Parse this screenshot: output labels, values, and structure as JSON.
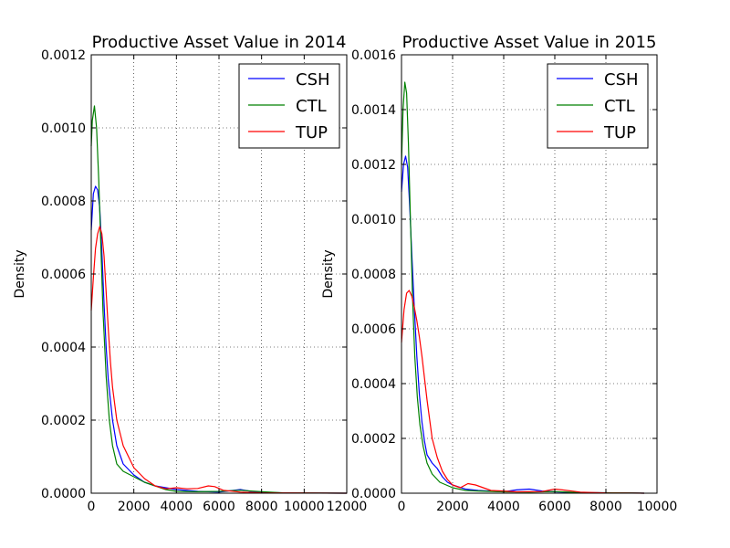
{
  "chart_data": [
    {
      "type": "line",
      "title": "Productive Asset Value in 2014",
      "xlabel": "",
      "ylabel": "Density",
      "xlim": [
        0,
        12000
      ],
      "ylim": [
        0,
        0.0012
      ],
      "xticks": [
        0,
        2000,
        4000,
        6000,
        8000,
        10000,
        12000
      ],
      "xtick_labels": [
        "0",
        "2000",
        "4000",
        "6000",
        "8000",
        "10000",
        "12000"
      ],
      "yticks": [
        0,
        0.0002,
        0.0004,
        0.0006,
        0.0008,
        0.001,
        0.0012
      ],
      "ytick_labels": [
        "0.0000",
        "0.0002",
        "0.0004",
        "0.0006",
        "0.0008",
        "0.0010",
        "0.0012"
      ],
      "grid": true,
      "legend": "top-right",
      "series": [
        {
          "name": "CSH",
          "color": "#0000ff",
          "points": [
            [
              0,
              0.00072
            ],
            [
              100,
              0.00082
            ],
            [
              200,
              0.00084
            ],
            [
              300,
              0.00083
            ],
            [
              400,
              0.00078
            ],
            [
              500,
              0.00066
            ],
            [
              600,
              0.00052
            ],
            [
              700,
              0.0004
            ],
            [
              800,
              0.00031
            ],
            [
              1000,
              0.0002
            ],
            [
              1200,
              0.00013
            ],
            [
              1500,
              8e-05
            ],
            [
              2000,
              5e-05
            ],
            [
              2500,
              3e-05
            ],
            [
              3000,
              2e-05
            ],
            [
              3500,
              1.5e-05
            ],
            [
              4000,
              1e-05
            ],
            [
              5000,
              5e-06
            ],
            [
              6000,
              3e-06
            ],
            [
              7000,
              1e-05
            ],
            [
              7500,
              5e-06
            ],
            [
              8000,
              2e-06
            ],
            [
              9000,
              1e-06
            ],
            [
              12000,
              0
            ]
          ]
        },
        {
          "name": "CTL",
          "color": "#008000",
          "points": [
            [
              0,
              0.00095
            ],
            [
              50,
              0.00102
            ],
            [
              150,
              0.00106
            ],
            [
              250,
              0.001
            ],
            [
              350,
              0.00086
            ],
            [
              450,
              0.00068
            ],
            [
              550,
              0.0005
            ],
            [
              700,
              0.00032
            ],
            [
              850,
              0.0002
            ],
            [
              1000,
              0.00013
            ],
            [
              1200,
              8e-05
            ],
            [
              1500,
              6e-05
            ],
            [
              2000,
              4.5e-05
            ],
            [
              2500,
              3e-05
            ],
            [
              3000,
              2e-05
            ],
            [
              3500,
              1e-05
            ],
            [
              4000,
              5e-06
            ],
            [
              5000,
              4e-06
            ],
            [
              6000,
              5e-06
            ],
            [
              7000,
              8e-06
            ],
            [
              8000,
              4e-06
            ],
            [
              9000,
              1e-06
            ],
            [
              12000,
              0
            ]
          ]
        },
        {
          "name": "TUP",
          "color": "#ff0000",
          "points": [
            [
              0,
              0.0005
            ],
            [
              100,
              0.00059
            ],
            [
              200,
              0.00067
            ],
            [
              300,
              0.00071
            ],
            [
              400,
              0.00073
            ],
            [
              500,
              0.00071
            ],
            [
              600,
              0.00065
            ],
            [
              700,
              0.00055
            ],
            [
              800,
              0.00045
            ],
            [
              900,
              0.00036
            ],
            [
              1000,
              0.00029
            ],
            [
              1200,
              0.0002
            ],
            [
              1500,
              0.00013
            ],
            [
              2000,
              7e-05
            ],
            [
              2500,
              4e-05
            ],
            [
              3000,
              2e-05
            ],
            [
              3500,
              1.2e-05
            ],
            [
              4000,
              1.5e-05
            ],
            [
              4500,
              1.2e-05
            ],
            [
              5000,
              1.3e-05
            ],
            [
              5500,
              2e-05
            ],
            [
              5800,
              1.8e-05
            ],
            [
              6200,
              8e-06
            ],
            [
              7000,
              3e-06
            ],
            [
              8000,
              1e-06
            ],
            [
              12000,
              0
            ]
          ]
        }
      ]
    },
    {
      "type": "line",
      "title": "Productive Asset Value in 2015",
      "xlabel": "",
      "ylabel": "Density",
      "xlim": [
        0,
        10000
      ],
      "ylim": [
        0,
        0.0016
      ],
      "xticks": [
        0,
        2000,
        4000,
        6000,
        8000,
        10000
      ],
      "xtick_labels": [
        "0",
        "2000",
        "4000",
        "6000",
        "8000",
        "10000"
      ],
      "yticks": [
        0,
        0.0002,
        0.0004,
        0.0006,
        0.0008,
        0.001,
        0.0012,
        0.0014,
        0.0016
      ],
      "ytick_labels": [
        "0.0000",
        "0.0002",
        "0.0004",
        "0.0006",
        "0.0008",
        "0.0010",
        "0.0012",
        "0.0014",
        "0.0016"
      ],
      "grid": true,
      "legend": "top-right",
      "series": [
        {
          "name": "CSH",
          "color": "#0000ff",
          "points": [
            [
              0,
              0.0011
            ],
            [
              80,
              0.0012
            ],
            [
              160,
              0.00123
            ],
            [
              240,
              0.00119
            ],
            [
              320,
              0.00105
            ],
            [
              400,
              0.00088
            ],
            [
              500,
              0.00068
            ],
            [
              600,
              0.0005
            ],
            [
              700,
              0.00036
            ],
            [
              800,
              0.00026
            ],
            [
              900,
              0.00019
            ],
            [
              1000,
              0.00014
            ],
            [
              1200,
              0.00011
            ],
            [
              1400,
              9e-05
            ],
            [
              1600,
              6e-05
            ],
            [
              1800,
              4e-05
            ],
            [
              2000,
              3e-05
            ],
            [
              2500,
              1.5e-05
            ],
            [
              3000,
              1e-05
            ],
            [
              4000,
              5e-06
            ],
            [
              4500,
              1.2e-05
            ],
            [
              5000,
              1.5e-05
            ],
            [
              5500,
              8e-06
            ],
            [
              6000,
              5e-06
            ],
            [
              7000,
              2e-06
            ],
            [
              9000,
              1e-06
            ],
            [
              9500,
              0
            ]
          ]
        },
        {
          "name": "CTL",
          "color": "#008000",
          "points": [
            [
              0,
              0.0012
            ],
            [
              60,
              0.0014
            ],
            [
              130,
              0.0015
            ],
            [
              200,
              0.00146
            ],
            [
              270,
              0.00128
            ],
            [
              350,
              0.001
            ],
            [
              430,
              0.00072
            ],
            [
              520,
              0.0005
            ],
            [
              620,
              0.00035
            ],
            [
              720,
              0.00025
            ],
            [
              850,
              0.00017
            ],
            [
              1000,
              0.00011
            ],
            [
              1200,
              7e-05
            ],
            [
              1500,
              4e-05
            ],
            [
              2000,
              2e-05
            ],
            [
              2500,
              1e-05
            ],
            [
              3000,
              8e-06
            ],
            [
              4000,
              5e-06
            ],
            [
              5000,
              4e-06
            ],
            [
              6000,
              6e-06
            ],
            [
              7000,
              2e-06
            ],
            [
              9000,
              1e-06
            ],
            [
              9500,
              0
            ]
          ]
        },
        {
          "name": "TUP",
          "color": "#ff0000",
          "points": [
            [
              0,
              0.00055
            ],
            [
              100,
              0.00067
            ],
            [
              200,
              0.00073
            ],
            [
              300,
              0.00074
            ],
            [
              400,
              0.00072
            ],
            [
              500,
              0.00068
            ],
            [
              600,
              0.00063
            ],
            [
              700,
              0.00057
            ],
            [
              800,
              0.0005
            ],
            [
              900,
              0.00042
            ],
            [
              1000,
              0.00034
            ],
            [
              1100,
              0.00027
            ],
            [
              1200,
              0.0002
            ],
            [
              1400,
              0.00013
            ],
            [
              1600,
              8e-05
            ],
            [
              1800,
              5e-05
            ],
            [
              2000,
              3e-05
            ],
            [
              2300,
              2e-05
            ],
            [
              2600,
              3.5e-05
            ],
            [
              2900,
              3e-05
            ],
            [
              3200,
              2e-05
            ],
            [
              3500,
              1e-05
            ],
            [
              4000,
              8e-06
            ],
            [
              4500,
              5e-06
            ],
            [
              5500,
              6e-06
            ],
            [
              6000,
              1.5e-05
            ],
            [
              6300,
              1.2e-05
            ],
            [
              7000,
              4e-06
            ],
            [
              8000,
              1e-06
            ],
            [
              9500,
              0
            ]
          ]
        }
      ]
    }
  ]
}
